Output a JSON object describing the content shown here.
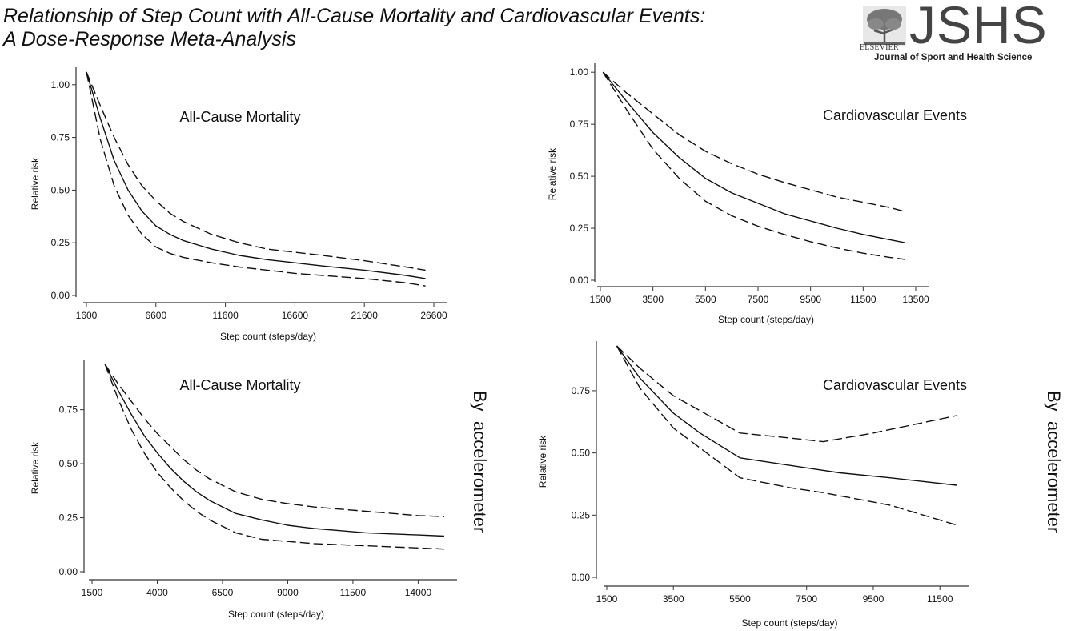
{
  "title": {
    "line1": "Relationship of Step Count with All-Cause Mortality and Cardiovascular Events:",
    "line2": "A Dose-Response Meta-Analysis"
  },
  "logo": {
    "mark": "JSHS",
    "journal": "Journal of Sport and Health Science",
    "publisher": "ELSEVIER",
    "icon": "elsevier-tree-icon"
  },
  "side_labels": {
    "left": "By  accelerometer",
    "right": "By  accelerometer"
  },
  "colors": {
    "line": "#111111",
    "axis": "#333333",
    "background": "#ffffff"
  },
  "chart_data": [
    {
      "type": "line",
      "title": "All-Cause Mortality",
      "xlabel": "Step count (steps/day)",
      "ylabel": "Relative risk",
      "xlim": [
        1600,
        26600
      ],
      "ylim": [
        0,
        1.06
      ],
      "xticks": [
        1600,
        6600,
        11600,
        16600,
        21600,
        26600
      ],
      "yticks": [
        0.0,
        0.25,
        0.5,
        0.75,
        1.0
      ],
      "ytick_labels": [
        "0.00",
        "0.25",
        "0.50",
        "0.75",
        "1.00"
      ],
      "grid": false,
      "series": [
        {
          "style": "solid",
          "x": [
            1600,
            2600,
            3600,
            4600,
            5600,
            6600,
            7600,
            8600,
            10600,
            12600,
            14600,
            16600,
            18600,
            21600,
            24600,
            26000
          ],
          "y": [
            1.06,
            0.84,
            0.64,
            0.5,
            0.4,
            0.33,
            0.29,
            0.26,
            0.22,
            0.19,
            0.17,
            0.155,
            0.14,
            0.12,
            0.095,
            0.08
          ]
        },
        {
          "style": "dashed",
          "x": [
            1600,
            2600,
            3600,
            4600,
            5600,
            6600,
            7600,
            8600,
            10600,
            12600,
            14600,
            16600,
            18600,
            21600,
            24600,
            26000
          ],
          "y": [
            1.06,
            0.9,
            0.75,
            0.62,
            0.52,
            0.45,
            0.39,
            0.35,
            0.29,
            0.25,
            0.22,
            0.205,
            0.19,
            0.165,
            0.135,
            0.12
          ]
        },
        {
          "style": "dashed",
          "x": [
            1600,
            2600,
            3600,
            4600,
            5600,
            6600,
            7600,
            8600,
            10600,
            12600,
            14600,
            16600,
            18600,
            21600,
            24600,
            26000
          ],
          "y": [
            1.06,
            0.74,
            0.52,
            0.38,
            0.29,
            0.23,
            0.2,
            0.18,
            0.155,
            0.135,
            0.12,
            0.105,
            0.095,
            0.08,
            0.06,
            0.045
          ]
        }
      ]
    },
    {
      "type": "line",
      "title": "Cardiovascular Events",
      "xlabel": "Step count (steps/day)",
      "ylabel": "Relative risk",
      "xlim": [
        1500,
        13500
      ],
      "ylim": [
        0,
        1.02
      ],
      "xticks": [
        1500,
        3500,
        5500,
        7500,
        9500,
        11500,
        13500
      ],
      "yticks": [
        0.0,
        0.25,
        0.5,
        0.75,
        1.0
      ],
      "ytick_labels": [
        "0.00",
        "0.25",
        "0.50",
        "0.75",
        "1.00"
      ],
      "grid": false,
      "series": [
        {
          "style": "solid",
          "x": [
            1600,
            2500,
            3500,
            4500,
            5500,
            6500,
            7500,
            8500,
            9500,
            10500,
            11500,
            12500,
            13100
          ],
          "y": [
            1.0,
            0.86,
            0.71,
            0.59,
            0.49,
            0.42,
            0.37,
            0.32,
            0.285,
            0.25,
            0.22,
            0.195,
            0.18
          ]
        },
        {
          "style": "dashed",
          "x": [
            1600,
            2500,
            3500,
            4500,
            5500,
            6500,
            7500,
            8500,
            9500,
            10500,
            11500,
            12500,
            13100
          ],
          "y": [
            1.0,
            0.9,
            0.8,
            0.7,
            0.62,
            0.56,
            0.51,
            0.47,
            0.435,
            0.4,
            0.375,
            0.35,
            0.33
          ]
        },
        {
          "style": "dashed",
          "x": [
            1600,
            2500,
            3500,
            4500,
            5500,
            6500,
            7500,
            8500,
            9500,
            10500,
            11500,
            12500,
            13100
          ],
          "y": [
            1.0,
            0.82,
            0.63,
            0.49,
            0.38,
            0.31,
            0.26,
            0.22,
            0.185,
            0.155,
            0.13,
            0.11,
            0.1
          ]
        }
      ]
    },
    {
      "type": "line",
      "title": "All-Cause Mortality",
      "xlabel": "Step count (steps/day)",
      "ylabel": "Relative risk",
      "xlim": [
        1500,
        15000
      ],
      "ylim": [
        0,
        0.96
      ],
      "xticks": [
        1500,
        4000,
        6500,
        9000,
        11500,
        14000
      ],
      "yticks": [
        0.0,
        0.25,
        0.5,
        0.75
      ],
      "ytick_labels": [
        "0.00",
        "0.25",
        "0.50",
        "0.75"
      ],
      "grid": false,
      "series": [
        {
          "style": "solid",
          "x": [
            2000,
            2500,
            3000,
            3500,
            4000,
            4500,
            5000,
            5500,
            6000,
            6500,
            7000,
            8000,
            9000,
            10000,
            11000,
            12000,
            13000,
            14000,
            15000
          ],
          "y": [
            0.96,
            0.84,
            0.73,
            0.63,
            0.55,
            0.48,
            0.42,
            0.37,
            0.33,
            0.3,
            0.27,
            0.24,
            0.215,
            0.2,
            0.19,
            0.18,
            0.175,
            0.17,
            0.165
          ]
        },
        {
          "style": "dashed",
          "x": [
            2000,
            2500,
            3000,
            3500,
            4000,
            4500,
            5000,
            5500,
            6000,
            6500,
            7000,
            8000,
            9000,
            10000,
            11000,
            12000,
            13000,
            14000,
            15000
          ],
          "y": [
            0.96,
            0.87,
            0.79,
            0.71,
            0.64,
            0.58,
            0.52,
            0.47,
            0.43,
            0.4,
            0.37,
            0.335,
            0.315,
            0.3,
            0.29,
            0.28,
            0.27,
            0.26,
            0.255
          ]
        },
        {
          "style": "dashed",
          "x": [
            2000,
            2500,
            3000,
            3500,
            4000,
            4500,
            5000,
            5500,
            6000,
            6500,
            7000,
            8000,
            9000,
            10000,
            11000,
            12000,
            13000,
            14000,
            15000
          ],
          "y": [
            0.96,
            0.8,
            0.66,
            0.55,
            0.46,
            0.39,
            0.33,
            0.28,
            0.24,
            0.21,
            0.18,
            0.15,
            0.14,
            0.13,
            0.125,
            0.12,
            0.115,
            0.11,
            0.105
          ]
        }
      ]
    },
    {
      "type": "line",
      "title": "Cardiovascular Events",
      "xlabel": "Step count (steps/day)",
      "ylabel": "Relative risk",
      "xlim": [
        1500,
        12000
      ],
      "ylim": [
        0,
        0.93
      ],
      "xticks": [
        1500,
        3500,
        5500,
        7500,
        9500,
        11500
      ],
      "yticks": [
        0.0,
        0.25,
        0.5,
        0.75
      ],
      "ytick_labels": [
        "0.00",
        "0.25",
        "0.50",
        "0.75"
      ],
      "grid": false,
      "series": [
        {
          "style": "solid",
          "x": [
            1800,
            2500,
            3500,
            4300,
            5500,
            7000,
            8500,
            10000,
            12000
          ],
          "y": [
            0.93,
            0.8,
            0.66,
            0.58,
            0.48,
            0.45,
            0.42,
            0.4,
            0.37
          ]
        },
        {
          "style": "dashed",
          "x": [
            1800,
            2500,
            3500,
            4300,
            5500,
            7000,
            8000,
            9500,
            12000
          ],
          "y": [
            0.93,
            0.84,
            0.73,
            0.67,
            0.58,
            0.56,
            0.545,
            0.58,
            0.65
          ]
        },
        {
          "style": "dashed",
          "x": [
            1800,
            2500,
            3500,
            4300,
            5500,
            7000,
            8000,
            10000,
            12000
          ],
          "y": [
            0.93,
            0.76,
            0.6,
            0.52,
            0.4,
            0.36,
            0.34,
            0.29,
            0.21
          ]
        }
      ]
    }
  ]
}
